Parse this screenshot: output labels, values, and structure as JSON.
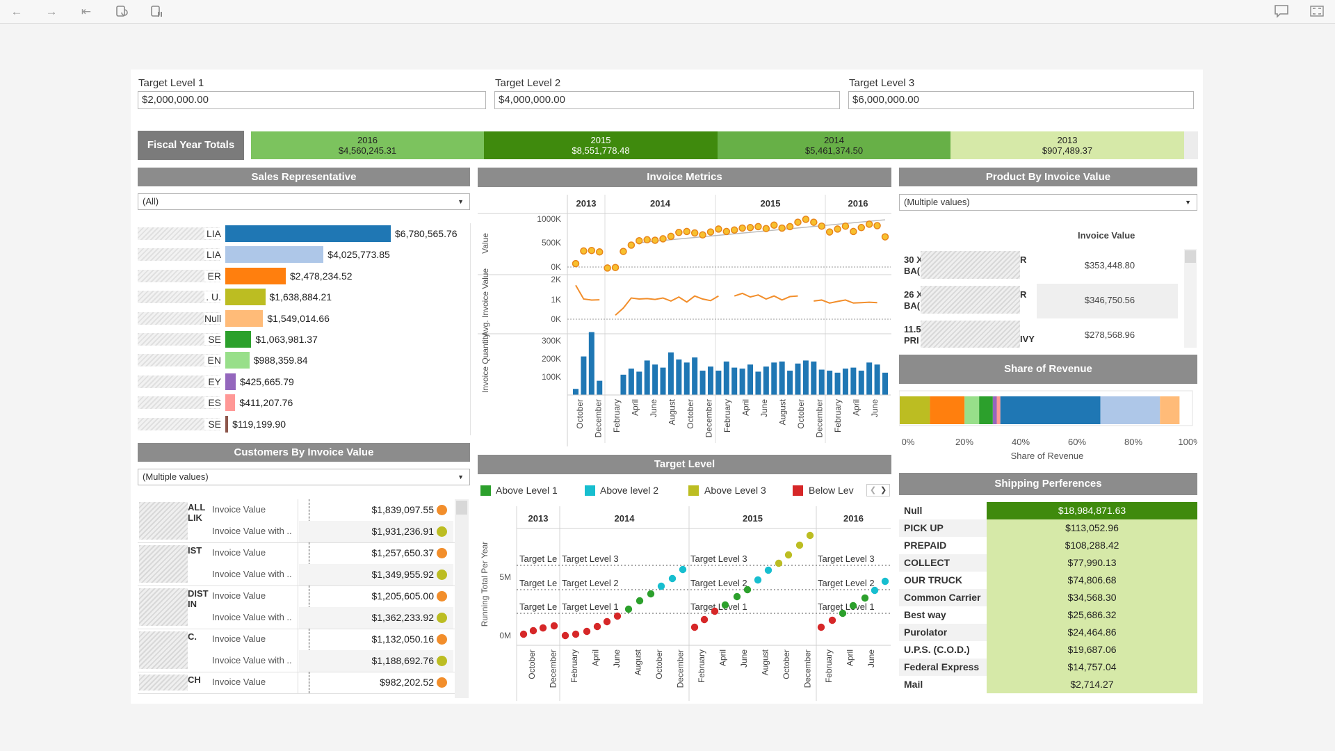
{
  "toolbar": {
    "icons": [
      "back-icon",
      "forward-icon",
      "revert-icon",
      "refresh-icon",
      "pause-updates-icon",
      "comment-icon",
      "fullscreen-icon"
    ]
  },
  "targets": [
    {
      "label": "Target Level 1",
      "value": "$2,000,000.00"
    },
    {
      "label": "Target Level 2",
      "value": "$4,000,000.00"
    },
    {
      "label": "Target Level 3",
      "value": "$6,000,000.00"
    }
  ],
  "fiscal": {
    "label": "Fiscal Year Totals",
    "years": [
      {
        "year": "2016",
        "total": "$4,560,245.31",
        "color": "#7cc35e"
      },
      {
        "year": "2015",
        "total": "$8,551,778.48",
        "color": "#3f8a0d"
      },
      {
        "year": "2014",
        "total": "$5,461,374.50",
        "color": "#67b047"
      },
      {
        "year": "2013",
        "total": "$907,489.37",
        "color": "#d6e9a8"
      }
    ]
  },
  "sales": {
    "title": "Sales Representative",
    "filter": "(All)",
    "reps": [
      {
        "suffix": "LIA",
        "value": "$6,780,565.76",
        "amount": 6780565.76,
        "color": "#1f77b4"
      },
      {
        "suffix": "LIA",
        "value": "$4,025,773.85",
        "amount": 4025773.85,
        "color": "#aec7e8"
      },
      {
        "suffix": "ER",
        "value": "$2,478,234.52",
        "amount": 2478234.52,
        "color": "#ff7f0e"
      },
      {
        "suffix": ". U.",
        "value": "$1,638,884.21",
        "amount": 1638884.21,
        "color": "#bcbd22"
      },
      {
        "suffix": "Null",
        "value": "$1,549,014.66",
        "amount": 1549014.66,
        "color": "#ffbb78"
      },
      {
        "suffix": "SE",
        "value": "$1,063,981.37",
        "amount": 1063981.37,
        "color": "#2ca02c"
      },
      {
        "suffix": "EN",
        "value": "$988,359.84",
        "amount": 988359.84,
        "color": "#98df8a"
      },
      {
        "suffix": "EY",
        "value": "$425,665.79",
        "amount": 425665.79,
        "color": "#9467bd"
      },
      {
        "suffix": "ES",
        "value": "$411,207.76",
        "amount": 411207.76,
        "color": "#ff9896"
      },
      {
        "suffix": "SE",
        "value": "$119,199.90",
        "amount": 119199.9,
        "color": "#8c564b"
      }
    ]
  },
  "customers": {
    "title": "Customers By Invoice Value",
    "filter": "(Multiple values)",
    "groups": [
      {
        "name": "ALL\nLIK",
        "rows": [
          {
            "metric": "Invoice Value",
            "value": "$1,839,097.55",
            "color": "#f28e2b"
          },
          {
            "metric": "Invoice Value with ..",
            "value": "$1,931,236.91",
            "color": "#bcbd22"
          }
        ]
      },
      {
        "name": "IST",
        "rows": [
          {
            "metric": "Invoice Value",
            "value": "$1,257,650.37",
            "color": "#f28e2b"
          },
          {
            "metric": "Invoice Value with ..",
            "value": "$1,349,955.92",
            "color": "#bcbd22"
          }
        ]
      },
      {
        "name": "DIST\nIN",
        "rows": [
          {
            "metric": "Invoice Value",
            "value": "$1,205,605.00",
            "color": "#f28e2b"
          },
          {
            "metric": "Invoice Value with ..",
            "value": "$1,362,233.92",
            "color": "#bcbd22"
          }
        ]
      },
      {
        "name": "C.",
        "rows": [
          {
            "metric": "Invoice Value",
            "value": "$1,132,050.16",
            "color": "#f28e2b"
          },
          {
            "metric": "Invoice Value with ..",
            "value": "$1,188,692.76",
            "color": "#bcbd22"
          }
        ]
      },
      {
        "name": "CH",
        "rows": [
          {
            "metric": "Invoice Value",
            "value": "$982,202.52",
            "color": "#f28e2b"
          }
        ]
      }
    ]
  },
  "invoice_metrics": {
    "title": "Invoice Metrics",
    "years": [
      "2013",
      "2014",
      "2015",
      "2016"
    ],
    "months": [
      "October",
      "December",
      "February",
      "April",
      "June",
      "August",
      "October",
      "December",
      "February",
      "April",
      "June",
      "August",
      "October",
      "December",
      "February",
      "April",
      "June"
    ],
    "value_axis": {
      "title": "Value",
      "ticks": [
        "1000K",
        "500K",
        "0K"
      ]
    },
    "avg_axis": {
      "title": "Avg. Invoice Value",
      "ticks": [
        "2K",
        "1K",
        "0K"
      ]
    },
    "qty_axis": {
      "title": "Invoice Quantity",
      "ticks": [
        "300K",
        "200K",
        "100K"
      ]
    }
  },
  "target_level": {
    "title": "Target Level",
    "legend": [
      {
        "label": "Above Level 1",
        "color": "#2ca02c"
      },
      {
        "label": "Above level 2",
        "color": "#17becf"
      },
      {
        "label": "Above Level 3",
        "color": "#bcbd22"
      },
      {
        "label": "Below Lev",
        "color": "#d62728"
      }
    ],
    "years": [
      "2013",
      "2014",
      "2015",
      "2016"
    ],
    "y_title": "Running Total Per Year",
    "y_ticks": [
      "5M",
      "0M"
    ],
    "ref_labels": [
      "Target Level 3",
      "Target Level 2",
      "Target Level 1"
    ],
    "ref_short": "Target Le",
    "months": [
      "October",
      "December",
      "February",
      "April",
      "June",
      "August",
      "October",
      "December",
      "February",
      "April",
      "June",
      "August",
      "October",
      "December",
      "February",
      "April",
      "June"
    ]
  },
  "product": {
    "title": "Product By Invoice Value",
    "filter": "(Multiple values)",
    "col_header": "Invoice Value",
    "rows": [
      {
        "name": "30 X\nBA(",
        "tail": "R",
        "value": "$353,448.80"
      },
      {
        "name": "26 X\nBA(",
        "tail": "R",
        "value": "$346,750.56"
      },
      {
        "name": "11.5\nPRI",
        "tail": "IVY",
        "value": "$278,568.96"
      }
    ]
  },
  "share": {
    "title": "Share of Revenue",
    "axis_title": "Share of Revenue",
    "ticks": [
      "0%",
      "20%",
      "40%",
      "60%",
      "80%",
      "100%"
    ],
    "segments": [
      {
        "pct": 10.8,
        "color": "#bcbd22"
      },
      {
        "pct": 12.4,
        "color": "#ff7f0e"
      },
      {
        "pct": 5.2,
        "color": "#98df8a"
      },
      {
        "pct": 4.9,
        "color": "#2ca02c"
      },
      {
        "pct": 1.4,
        "color": "#9467bd"
      },
      {
        "pct": 1.3,
        "color": "#ff9896"
      },
      {
        "pct": 35.8,
        "color": "#1f77b4"
      },
      {
        "pct": 21.3,
        "color": "#aec7e8"
      },
      {
        "pct": 7.0,
        "color": "#ffbb78"
      }
    ]
  },
  "shipping": {
    "title": "Shipping Perferences",
    "rows": [
      {
        "name": "Null",
        "value": "$18,984,871.63"
      },
      {
        "name": "PICK UP",
        "value": "$113,052.96"
      },
      {
        "name": "PREPAID",
        "value": "$108,288.42"
      },
      {
        "name": "COLLECT",
        "value": "$77,990.13"
      },
      {
        "name": "OUR TRUCK",
        "value": "$74,806.68"
      },
      {
        "name": "Common Carrier",
        "value": "$34,568.30"
      },
      {
        "name": "Best way",
        "value": "$25,686.32"
      },
      {
        "name": "Purolator",
        "value": "$24,464.86"
      },
      {
        "name": "U.P.S. (C.O.D.)",
        "value": "$19,687.06"
      },
      {
        "name": "Federal Express",
        "value": "$14,757.04"
      },
      {
        "name": "Mail",
        "value": "$2,714.27"
      }
    ]
  }
}
